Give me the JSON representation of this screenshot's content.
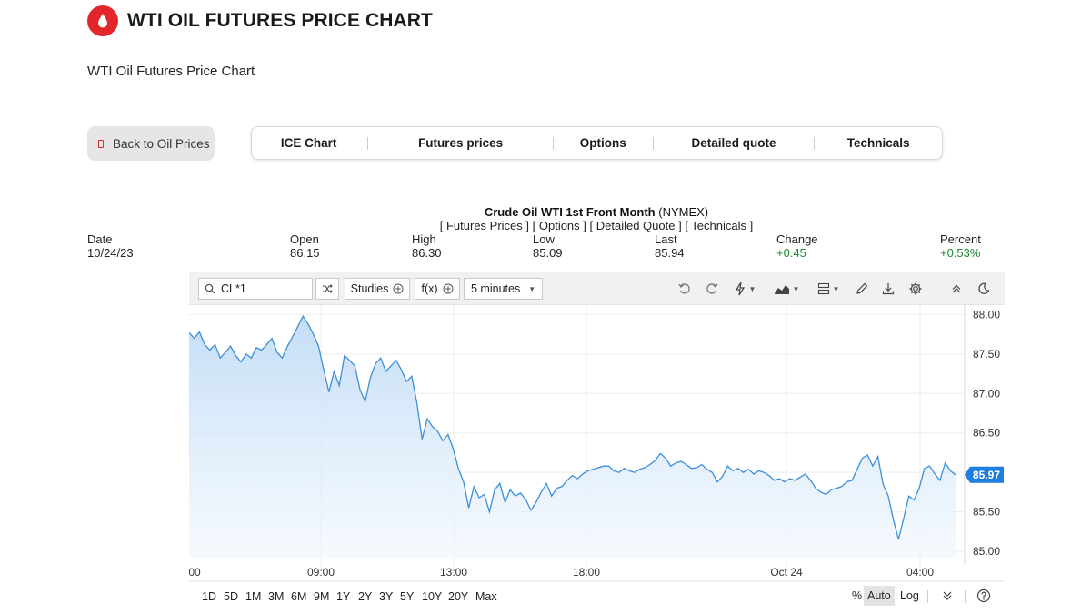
{
  "header": {
    "title": "WTI OIL FUTURES PRICE CHART",
    "subtitle": "WTI Oil Futures Price Chart",
    "brand_color": "#e3262a"
  },
  "back_button": {
    "label": "Back to Oil Prices"
  },
  "tabs": [
    {
      "label": "ICE Chart"
    },
    {
      "label": "Futures prices"
    },
    {
      "label": "Options"
    },
    {
      "label": "Detailed quote"
    },
    {
      "label": "Technicals"
    }
  ],
  "quote": {
    "instrument": "Crude Oil WTI 1st Front Month",
    "exchange": "(NYMEX)",
    "links": [
      "[ Futures Prices ]",
      "[ Options ]",
      "[ Detailed Quote ]",
      "[ Technicals ]"
    ],
    "stats": [
      {
        "label": "Date",
        "value": "10/24/23"
      },
      {
        "label": "Open",
        "value": "86.15"
      },
      {
        "label": "High",
        "value": "86.30"
      },
      {
        "label": "Low",
        "value": "85.09"
      },
      {
        "label": "Last",
        "value": "85.94"
      },
      {
        "label": "Change",
        "value": "+0.45"
      },
      {
        "label": "Percent",
        "value": "+0.53%"
      }
    ],
    "positive_color": "#1e8b2e"
  },
  "toolbar": {
    "symbol": "CL*1",
    "studies_label": "Studies",
    "fx_label": "f(x)",
    "interval_label": "5 minutes",
    "icons": [
      "undo-icon",
      "redo-icon",
      "lightning-icon",
      "chart-style-icon",
      "layout-icon",
      "pencil-icon",
      "download-icon",
      "settings-icon",
      "collapse-icon",
      "dark-mode-icon"
    ]
  },
  "chart_data": {
    "type": "area",
    "title": "",
    "xlabel": "",
    "ylabel": "",
    "x_ticks": [
      "00",
      "09:00",
      "13:00",
      "18:00",
      "Oct 24",
      "04:00"
    ],
    "y_ticks": [
      "88.00",
      "87.50",
      "87.00",
      "86.50",
      "86.00",
      "85.50",
      "85.00"
    ],
    "ylim": [
      84.92,
      88.12
    ],
    "grid": true,
    "last_price_label": "85.97",
    "series": [
      {
        "values": [
          87.77,
          87.7,
          87.78,
          87.62,
          87.55,
          87.62,
          87.45,
          87.52,
          87.6,
          87.48,
          87.4,
          87.5,
          87.45,
          87.58,
          87.55,
          87.62,
          87.7,
          87.52,
          87.45,
          87.6,
          87.72,
          87.85,
          87.98,
          87.88,
          87.75,
          87.6,
          87.3,
          87.02,
          87.28,
          87.1,
          87.48,
          87.42,
          87.35,
          87.05,
          86.9,
          87.2,
          87.38,
          87.45,
          87.28,
          87.35,
          87.42,
          87.3,
          87.15,
          87.22,
          86.88,
          86.42,
          86.68,
          86.58,
          86.52,
          86.4,
          86.48,
          86.3,
          86.05,
          85.88,
          85.55,
          85.82,
          85.68,
          85.72,
          85.5,
          85.78,
          85.86,
          85.62,
          85.78,
          85.7,
          85.74,
          85.66,
          85.52,
          85.62,
          85.75,
          85.86,
          85.7,
          85.8,
          85.82,
          85.9,
          85.96,
          85.92,
          85.98,
          86.02,
          86.04,
          86.06,
          86.08,
          86.08,
          86.02,
          86.0,
          86.05,
          86.02,
          86.0,
          86.04,
          86.06,
          86.1,
          86.15,
          86.24,
          86.18,
          86.08,
          86.12,
          86.14,
          86.1,
          86.05,
          86.06,
          86.1,
          86.04,
          86.0,
          85.88,
          85.95,
          86.08,
          86.02,
          86.05,
          86.0,
          86.04,
          85.98,
          86.02,
          86.0,
          85.96,
          85.9,
          85.92,
          85.88,
          85.92,
          85.9,
          85.94,
          85.98,
          85.9,
          85.8,
          85.75,
          85.72,
          85.78,
          85.8,
          85.82,
          85.88,
          85.9,
          86.04,
          86.18,
          86.22,
          86.08,
          86.2,
          85.85,
          85.7,
          85.4,
          85.15,
          85.42,
          85.7,
          85.65,
          85.8,
          86.05,
          86.08,
          85.98,
          85.9,
          86.12,
          86.02,
          85.97
        ]
      }
    ]
  },
  "range_buttons": [
    "1D",
    "5D",
    "1M",
    "3M",
    "6M",
    "9M",
    "1Y",
    "2Y",
    "3Y",
    "5Y",
    "10Y",
    "20Y",
    "Max"
  ],
  "scale_buttons": {
    "percent": "%",
    "auto": "Auto",
    "log": "Log"
  }
}
